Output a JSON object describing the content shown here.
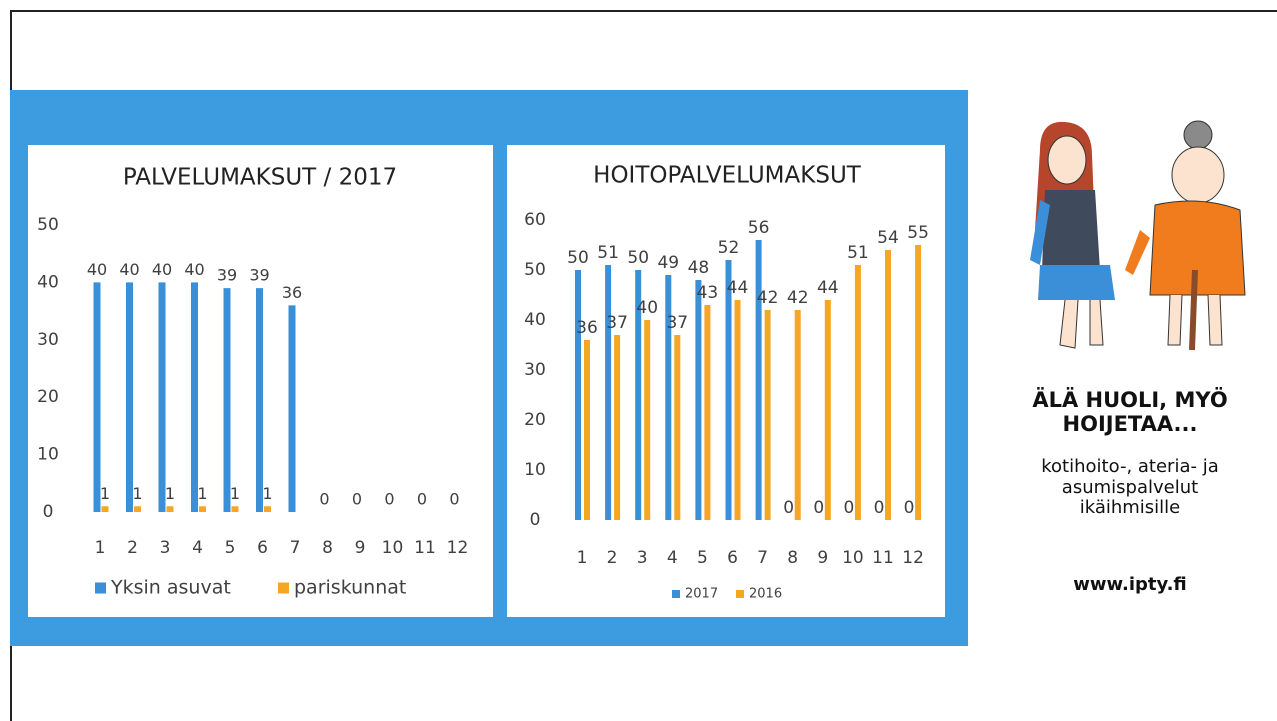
{
  "chart_data": [
    {
      "type": "bar",
      "title": "PALVELUMAKSUT / 2017",
      "categories": [
        "1",
        "2",
        "3",
        "4",
        "5",
        "6",
        "7",
        "8",
        "9",
        "10",
        "11",
        "12"
      ],
      "series": [
        {
          "name": "Yksin asuvat",
          "color": "#3a8fd9",
          "values": [
            40,
            40,
            40,
            40,
            39,
            39,
            36,
            0,
            0,
            0,
            0,
            0
          ]
        },
        {
          "name": "pariskunnat",
          "color": "#f5a623",
          "values": [
            1,
            1,
            1,
            1,
            1,
            1,
            null,
            null,
            null,
            null,
            null,
            null
          ]
        }
      ],
      "ylim": [
        0,
        50
      ],
      "yticks": [
        0,
        10,
        20,
        30,
        40,
        50
      ],
      "grid": false,
      "legend": "bottom"
    },
    {
      "type": "bar",
      "title": "HOITOPALVELUMAKSUT",
      "categories": [
        "1",
        "2",
        "3",
        "4",
        "5",
        "6",
        "7",
        "8",
        "9",
        "10",
        "11",
        "12"
      ],
      "series": [
        {
          "name": "2017",
          "color": "#3a8fd9",
          "values": [
            50,
            51,
            50,
            49,
            48,
            52,
            56,
            0,
            0,
            0,
            0,
            0
          ]
        },
        {
          "name": "2016",
          "color": "#f5a623",
          "values": [
            36,
            37,
            40,
            37,
            43,
            44,
            42,
            42,
            44,
            51,
            54,
            55
          ]
        }
      ],
      "ylim": [
        0,
        60
      ],
      "yticks": [
        0,
        10,
        20,
        30,
        40,
        50,
        60
      ],
      "grid": false,
      "legend": "bottom"
    }
  ],
  "sidebar": {
    "slogan": [
      "ÄLÄ HUOLI, MYÖ",
      "HOIJETAA..."
    ],
    "services": [
      "kotihoito-, ateria- ja",
      "asumispalvelut",
      "ikäihmisille"
    ],
    "website": "www.ipty.fi"
  }
}
